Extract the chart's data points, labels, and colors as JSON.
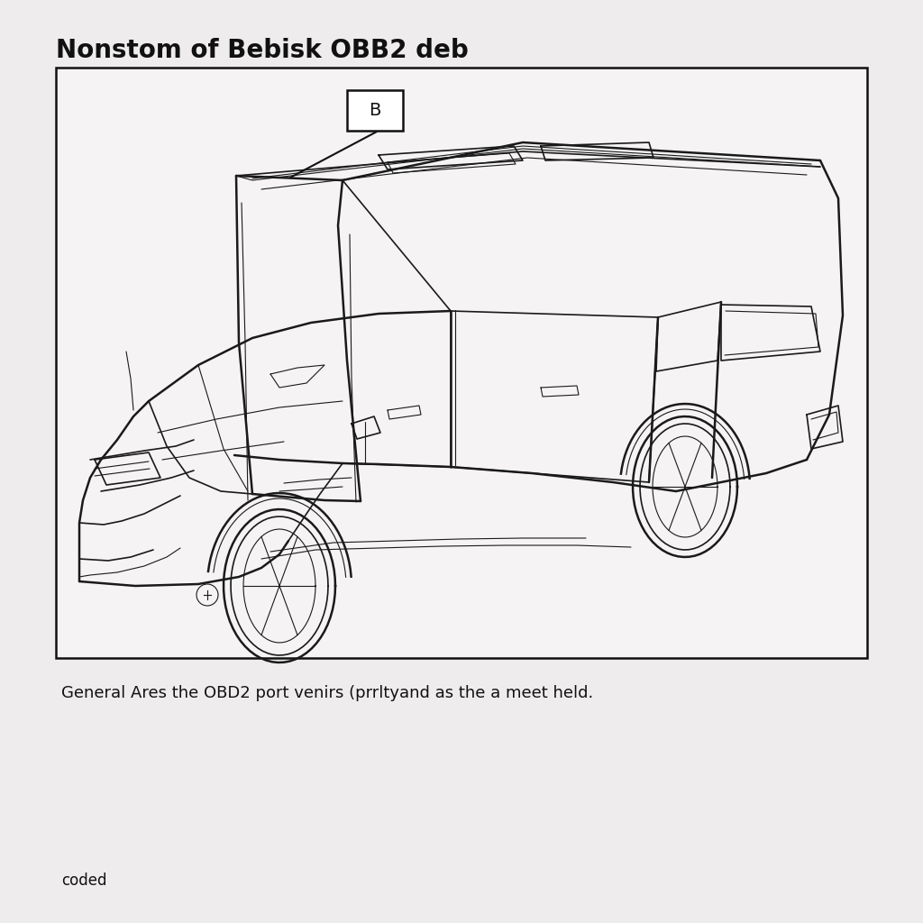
{
  "title": "Nonstom of Bebisk OBB2 deb",
  "caption": "General Ares the OBD2 port venirs (prrltyand as the a meet held.",
  "footer": "coded",
  "label_b": "B",
  "bg_color": "#eeecec",
  "box_bg": "#f2f0f0",
  "title_fontsize": 20,
  "caption_fontsize": 13,
  "footer_fontsize": 12,
  "label_fontsize": 14
}
